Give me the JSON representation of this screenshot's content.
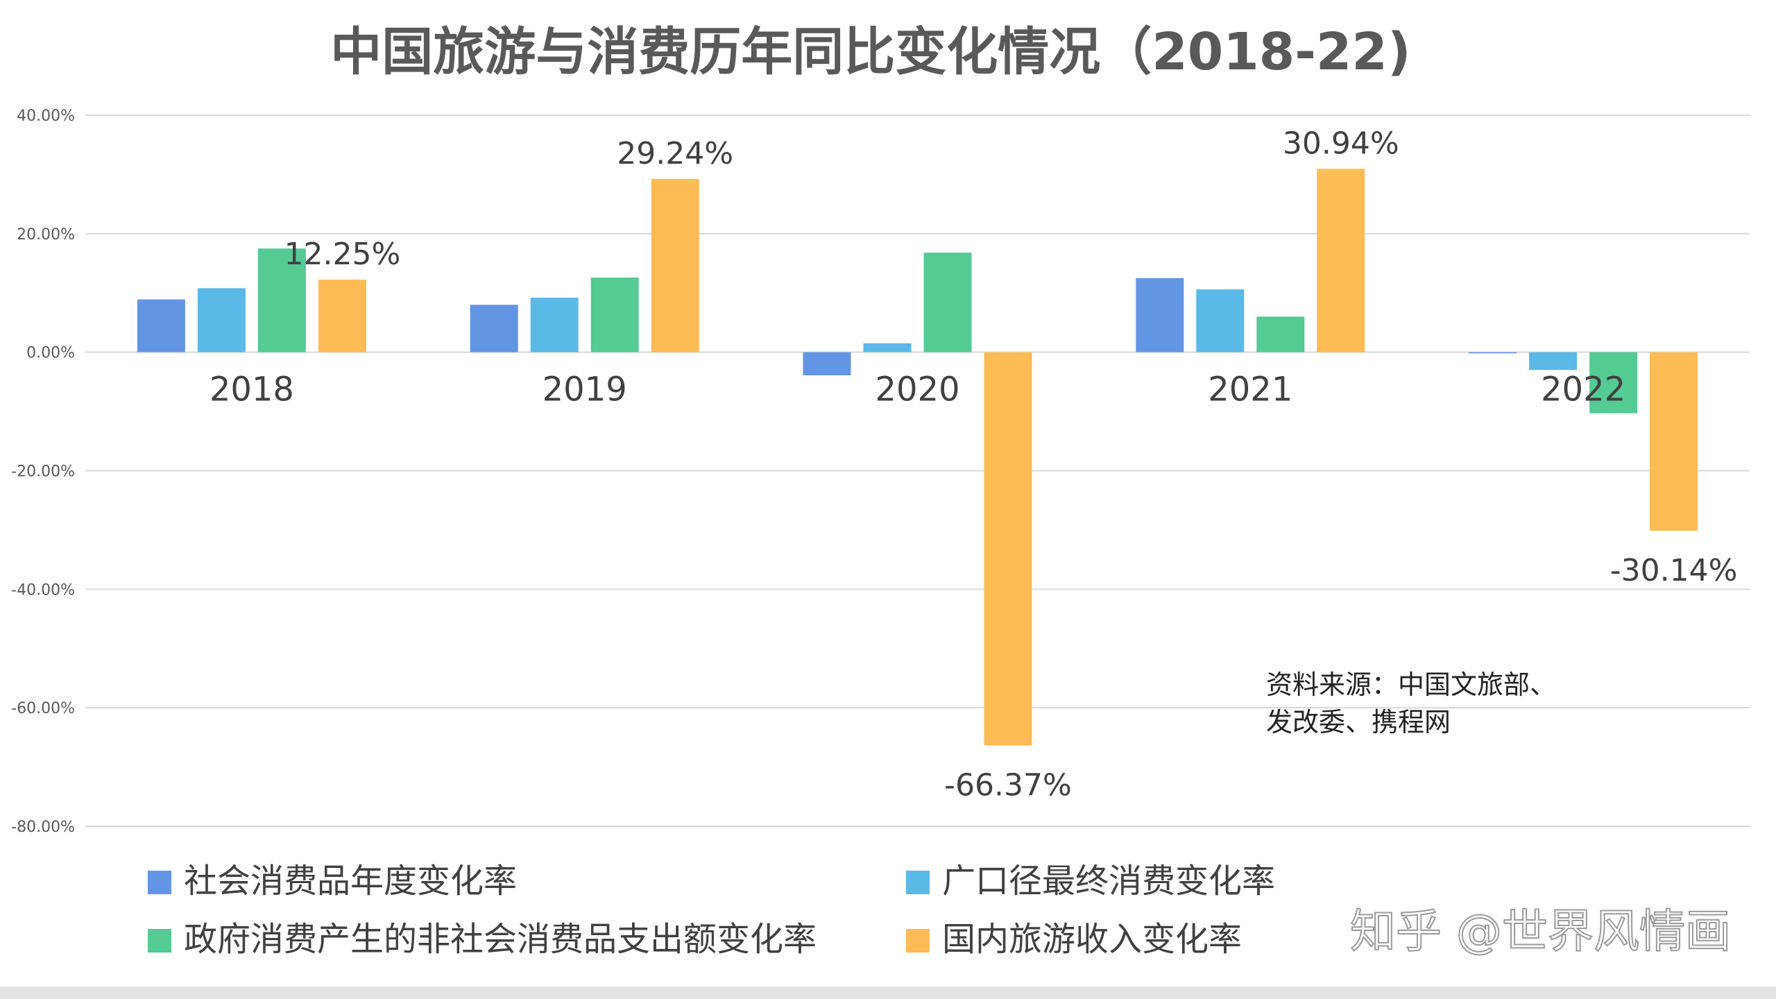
{
  "chart_data": {
    "type": "bar",
    "title": "中国旅游与消费历年同比变化情况（2018-22)",
    "categories": [
      "2018",
      "2019",
      "2020",
      "2021",
      "2022"
    ],
    "ylim": [
      -80,
      40
    ],
    "yticks": [
      40,
      20,
      0,
      -20,
      -40,
      -60,
      -80
    ],
    "ytick_labels": [
      "40.00%",
      "20.00%",
      "0.00%",
      "-20.00%",
      "-40.00%",
      "-60.00%",
      "-80.00%"
    ],
    "grid": true,
    "legend_position": "bottom",
    "series": [
      {
        "name": "社会消费品年度变化率",
        "color": "#6395e5",
        "values": [
          8.9,
          8.0,
          -3.9,
          12.5,
          -0.2
        ]
      },
      {
        "name": "广口径最终消费变化率",
        "color": "#5ab9e7",
        "values": [
          10.8,
          9.2,
          1.5,
          10.6,
          -3.0
        ]
      },
      {
        "name": "政府消费产生的非社会消费品支出额变化率",
        "color": "#53cb93",
        "values": [
          17.5,
          12.6,
          16.8,
          6.0,
          -10.3
        ]
      },
      {
        "name": "国内旅游收入变化率",
        "color": "#fdbb55",
        "values": [
          12.25,
          29.24,
          -66.37,
          30.94,
          -30.14
        ]
      }
    ],
    "data_labels": [
      {
        "category": "2018",
        "series": "国内旅游收入变化率",
        "text": "12.25%"
      },
      {
        "category": "2019",
        "series": "国内旅游收入变化率",
        "text": "29.24%"
      },
      {
        "category": "2020",
        "series": "国内旅游收入变化率",
        "text": "-66.37%"
      },
      {
        "category": "2021",
        "series": "国内旅游收入变化率",
        "text": "30.94%"
      },
      {
        "category": "2022",
        "series": "国内旅游收入变化率",
        "text": "-30.14%"
      }
    ],
    "annotations": [
      {
        "name": "source",
        "lines": [
          "资料来源：中国文旅部、",
          "发改委、携程网"
        ]
      }
    ]
  },
  "watermark": "知乎 @世界风情画"
}
